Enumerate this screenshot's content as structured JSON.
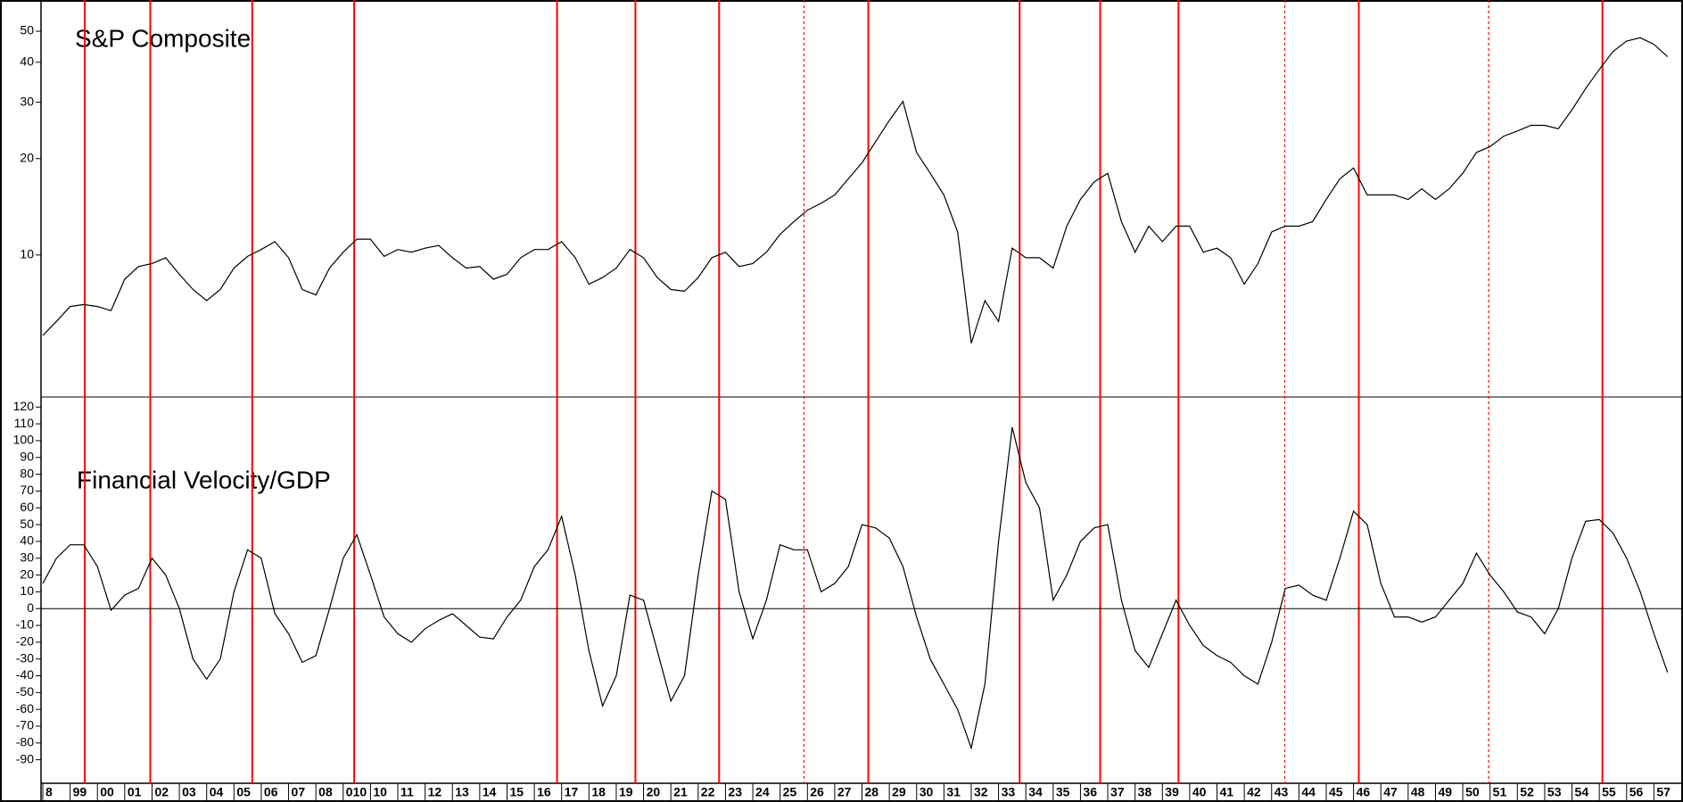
{
  "chart_data": [
    {
      "type": "line",
      "title": "S&P Composite",
      "log_scale": true,
      "ylim": [
        3.6,
        61
      ],
      "yticks": [
        10,
        20,
        30,
        40,
        50
      ],
      "series": [
        {
          "color": "#000000",
          "values": [
            5.6,
            6.2,
            6.9,
            7.0,
            6.9,
            6.7,
            8.4,
            9.2,
            9.4,
            9.8,
            8.7,
            7.8,
            7.2,
            7.8,
            9.1,
            9.9,
            10.4,
            11.0,
            9.8,
            7.8,
            7.5,
            9.1,
            10.2,
            11.2,
            11.2,
            9.9,
            10.4,
            10.2,
            10.5,
            10.7,
            9.8,
            9.1,
            9.2,
            8.4,
            8.7,
            9.8,
            10.4,
            10.4,
            11.0,
            9.8,
            8.1,
            8.5,
            9.1,
            10.4,
            9.8,
            8.5,
            7.8,
            7.7,
            8.5,
            9.8,
            10.2,
            9.2,
            9.4,
            10.2,
            11.6,
            12.7,
            13.8,
            14.5,
            15.4,
            17.3,
            19.4,
            22.6,
            26.3,
            30.2,
            20.9,
            18.0,
            15.4,
            11.8,
            5.3,
            7.2,
            6.2,
            10.5,
            9.8,
            9.8,
            9.1,
            12.3,
            14.9,
            16.9,
            18.0,
            12.7,
            10.2,
            12.3,
            11.0,
            12.3,
            12.3,
            10.2,
            10.5,
            9.8,
            8.1,
            9.4,
            11.8,
            12.3,
            12.3,
            12.7,
            14.9,
            17.3,
            18.7,
            15.4,
            15.4,
            15.4,
            14.9,
            16.1,
            14.9,
            16.1,
            18.0,
            20.9,
            21.8,
            23.5,
            24.4,
            25.4,
            25.4,
            24.8,
            28.4,
            33.1,
            38.0,
            43.2,
            46.6,
            47.7,
            45.5,
            41.6
          ]
        }
      ]
    },
    {
      "type": "line",
      "title": "Financial Velocity/GDP",
      "zero_line": true,
      "ylim": [
        -104,
        126
      ],
      "yticks": [
        -90,
        -80,
        -70,
        -60,
        -50,
        -40,
        -30,
        -20,
        -10,
        0,
        10,
        20,
        30,
        40,
        50,
        60,
        70,
        80,
        90,
        100,
        110,
        120
      ],
      "categories": [
        "8",
        null,
        "99",
        null,
        "00",
        null,
        "01",
        null,
        "02",
        null,
        "03",
        null,
        "04",
        null,
        "05",
        null,
        "06",
        null,
        "07",
        null,
        "08",
        null,
        "010",
        null,
        "10",
        null,
        "11",
        null,
        "12",
        null,
        "13",
        null,
        "14",
        null,
        "15",
        null,
        "16",
        null,
        "17",
        null,
        "18",
        null,
        "19",
        null,
        "20",
        null,
        "21",
        null,
        "22",
        null,
        "23",
        null,
        "24",
        null,
        "25",
        null,
        "26",
        null,
        "27",
        null,
        "28",
        null,
        "29",
        null,
        "30",
        null,
        "31",
        null,
        "32",
        null,
        "33",
        null,
        "34",
        null,
        "35",
        null,
        "36",
        null,
        "37",
        null,
        "38",
        null,
        "39",
        null,
        "40",
        null,
        "41",
        null,
        "42",
        null,
        "43",
        null,
        "44",
        null,
        "45",
        null,
        "46",
        null,
        "47",
        null,
        "48",
        null,
        "49",
        null,
        "50",
        null,
        "51",
        null,
        "52",
        null,
        "53",
        null,
        "54",
        null,
        "55",
        null,
        "56",
        null,
        "57",
        null
      ],
      "series": [
        {
          "color": "#000000",
          "values": [
            15,
            30,
            38,
            38,
            25,
            -1,
            8,
            12,
            30,
            20,
            0,
            -30,
            -42,
            -30,
            10,
            35,
            30,
            -3,
            -15,
            -32,
            -28,
            0,
            30,
            44,
            20,
            -5,
            -15,
            -20,
            -12,
            -7,
            -3,
            -10,
            -17,
            -18,
            -5,
            5,
            25,
            35,
            55,
            20,
            -25,
            -58,
            -40,
            8,
            5,
            -25,
            -55,
            -40,
            20,
            70,
            65,
            10,
            -18,
            5,
            38,
            35,
            35,
            10,
            15,
            25,
            50,
            48,
            42,
            25,
            -5,
            -30,
            -45,
            -60,
            -83,
            -45,
            40,
            108,
            75,
            60,
            5,
            20,
            40,
            48,
            50,
            5,
            -25,
            -35,
            -15,
            5,
            -10,
            -22,
            -28,
            -32,
            -40,
            -45,
            -20,
            12,
            14,
            8,
            5,
            30,
            58,
            50,
            15,
            -5,
            -5,
            -8,
            -5,
            5,
            15,
            33,
            20,
            10,
            -2,
            -5,
            -15,
            0,
            30,
            52,
            53,
            45,
            30,
            10,
            -15,
            -38
          ]
        }
      ]
    }
  ]
}
